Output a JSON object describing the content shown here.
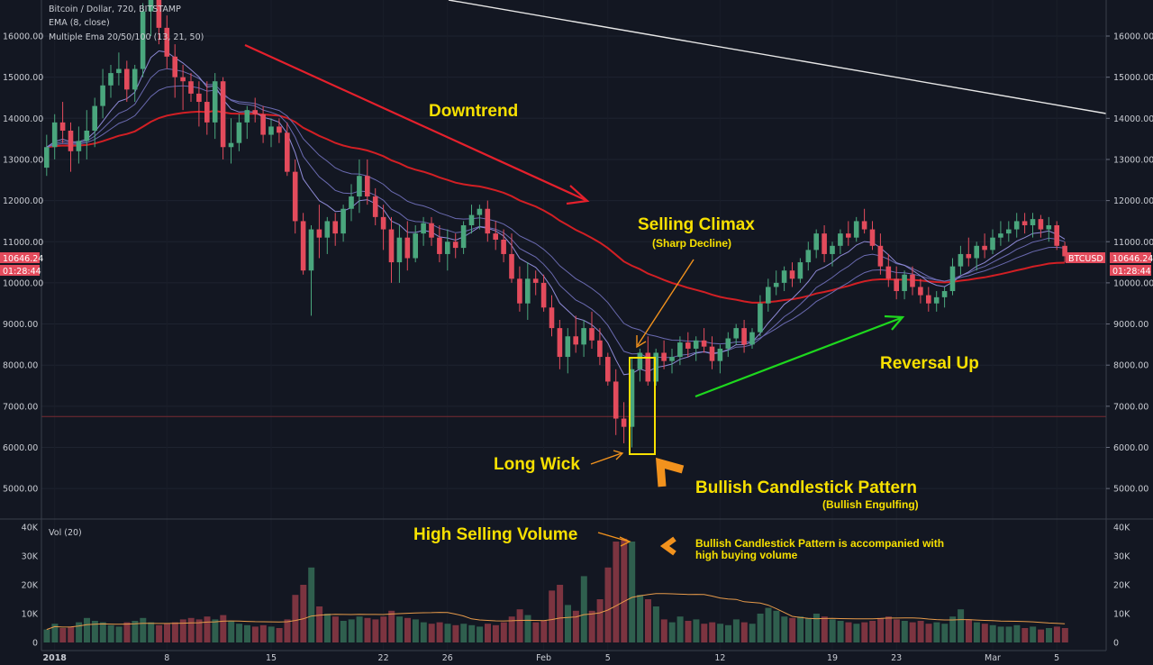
{
  "header": {
    "title": "Bitcoin / Dollar, 720, BITSTAMP",
    "ema": "EMA (8, close)",
    "multi_ema": "Multiple Ema 20/50/100 (13, 21, 50)",
    "vol_label": "Vol (20)"
  },
  "price_tag": {
    "price": "10646.24",
    "countdown": "01:28:44",
    "symbol": "BTCUSD"
  },
  "colors": {
    "background": "#131722",
    "bull": "#4aa67d",
    "bear": "#e34b5c",
    "ema_red": "#d21f24",
    "ema_fast": "#8e8ad6",
    "ema_mid": "#6a6ab0",
    "annotation": "#f7e000",
    "arrow_orange": "#f2921d",
    "arrow_red": "#e5202c",
    "arrow_green": "#1ed81e",
    "trendline": "#e6e6e6"
  },
  "annotations": {
    "downtrend": "Downtrend",
    "selling_climax": "Selling Climax",
    "sharp_decline": "(Sharp Decline)",
    "long_wick": "Long Wick",
    "reversal_up": "Reversal Up",
    "bullish_pattern": "Bullish Candlestick Pattern",
    "bullish_engulfing": "(Bullish Engulfing)",
    "high_selling_volume": "High Selling Volume",
    "buying_volume_line1": "Bullish Candlestick Pattern is accompanied with",
    "buying_volume_line2": "high buying volume"
  },
  "chart_data": {
    "type": "candlestick",
    "symbol": "BTCUSD",
    "interval": "720",
    "price_ticks": [
      "16000.00",
      "15000.00",
      "14000.00",
      "13000.00",
      "12000.00",
      "11000.00",
      "10000.00",
      "9000.00",
      "8000.00",
      "7000.00",
      "6000.00",
      "5000.00"
    ],
    "price_range": [
      4500,
      16700
    ],
    "volume_ticks": [
      "40K",
      "30K",
      "20K",
      "10K",
      "0"
    ],
    "volume_range": [
      0,
      40000
    ],
    "date_labels": [
      {
        "label": "2018",
        "bar": 1
      },
      {
        "label": "8",
        "bar": 15
      },
      {
        "label": "15",
        "bar": 28
      },
      {
        "label": "22",
        "bar": 42
      },
      {
        "label": "26",
        "bar": 50
      },
      {
        "label": "Feb",
        "bar": 62
      },
      {
        "label": "5",
        "bar": 70
      },
      {
        "label": "12",
        "bar": 84
      },
      {
        "label": "19",
        "bar": 98
      },
      {
        "label": "23",
        "bar": 106
      },
      {
        "label": "Mar",
        "bar": 118
      },
      {
        "label": "5",
        "bar": 126
      }
    ],
    "current_price": 10646.24,
    "horizontal_level": 6750,
    "candles": [
      {
        "o": 12800,
        "h": 13600,
        "l": 12600,
        "c": 13300,
        "v": 4500
      },
      {
        "o": 13300,
        "h": 14100,
        "l": 13000,
        "c": 13900,
        "v": 6500
      },
      {
        "o": 13900,
        "h": 14400,
        "l": 13400,
        "c": 13700,
        "v": 5000
      },
      {
        "o": 13700,
        "h": 13900,
        "l": 12700,
        "c": 13200,
        "v": 5500
      },
      {
        "o": 13200,
        "h": 13800,
        "l": 12900,
        "c": 13450,
        "v": 7000
      },
      {
        "o": 13450,
        "h": 14200,
        "l": 13000,
        "c": 13700,
        "v": 8500
      },
      {
        "o": 13700,
        "h": 14500,
        "l": 13300,
        "c": 14300,
        "v": 7500
      },
      {
        "o": 14300,
        "h": 15200,
        "l": 14000,
        "c": 14800,
        "v": 7000
      },
      {
        "o": 14800,
        "h": 15300,
        "l": 14500,
        "c": 15100,
        "v": 6000
      },
      {
        "o": 15100,
        "h": 15600,
        "l": 14800,
        "c": 15200,
        "v": 5500
      },
      {
        "o": 15200,
        "h": 15400,
        "l": 14400,
        "c": 14700,
        "v": 7000
      },
      {
        "o": 14700,
        "h": 15300,
        "l": 14400,
        "c": 15200,
        "v": 7500
      },
      {
        "o": 15200,
        "h": 16800,
        "l": 15000,
        "c": 16600,
        "v": 8500
      },
      {
        "o": 16600,
        "h": 17200,
        "l": 16000,
        "c": 16900,
        "v": 7000
      },
      {
        "o": 16900,
        "h": 17300,
        "l": 15800,
        "c": 16200,
        "v": 6000
      },
      {
        "o": 16200,
        "h": 16500,
        "l": 15200,
        "c": 15500,
        "v": 6500
      },
      {
        "o": 15500,
        "h": 15800,
        "l": 14500,
        "c": 15000,
        "v": 7000
      },
      {
        "o": 15000,
        "h": 15300,
        "l": 14200,
        "c": 14900,
        "v": 8000
      },
      {
        "o": 14900,
        "h": 15100,
        "l": 14400,
        "c": 14600,
        "v": 8500
      },
      {
        "o": 14600,
        "h": 14900,
        "l": 13800,
        "c": 14400,
        "v": 8000
      },
      {
        "o": 14400,
        "h": 14900,
        "l": 13600,
        "c": 13900,
        "v": 9000
      },
      {
        "o": 13900,
        "h": 15100,
        "l": 13500,
        "c": 14900,
        "v": 8000
      },
      {
        "o": 14900,
        "h": 15000,
        "l": 13000,
        "c": 13300,
        "v": 9500
      },
      {
        "o": 13300,
        "h": 14000,
        "l": 12900,
        "c": 13400,
        "v": 7500
      },
      {
        "o": 13400,
        "h": 14100,
        "l": 13200,
        "c": 13900,
        "v": 6500
      },
      {
        "o": 13900,
        "h": 14300,
        "l": 13500,
        "c": 14200,
        "v": 6000
      },
      {
        "o": 14200,
        "h": 14500,
        "l": 13900,
        "c": 14100,
        "v": 5500
      },
      {
        "o": 14100,
        "h": 14300,
        "l": 13400,
        "c": 13600,
        "v": 6000
      },
      {
        "o": 13600,
        "h": 14000,
        "l": 13300,
        "c": 13800,
        "v": 5500
      },
      {
        "o": 13800,
        "h": 14000,
        "l": 13400,
        "c": 13650,
        "v": 5000
      },
      {
        "o": 13650,
        "h": 13900,
        "l": 12600,
        "c": 12700,
        "v": 8000
      },
      {
        "o": 12700,
        "h": 13000,
        "l": 11200,
        "c": 11500,
        "v": 16500
      },
      {
        "o": 11500,
        "h": 11700,
        "l": 10200,
        "c": 10300,
        "v": 20000
      },
      {
        "o": 10300,
        "h": 11400,
        "l": 9200,
        "c": 11300,
        "v": 26000
      },
      {
        "o": 11300,
        "h": 11900,
        "l": 10600,
        "c": 11100,
        "v": 12500
      },
      {
        "o": 11100,
        "h": 11600,
        "l": 10700,
        "c": 11500,
        "v": 10000
      },
      {
        "o": 11500,
        "h": 11700,
        "l": 10900,
        "c": 11200,
        "v": 9000
      },
      {
        "o": 11200,
        "h": 11900,
        "l": 11000,
        "c": 11800,
        "v": 7500
      },
      {
        "o": 11800,
        "h": 12400,
        "l": 11500,
        "c": 12100,
        "v": 8000
      },
      {
        "o": 12100,
        "h": 13000,
        "l": 11700,
        "c": 12600,
        "v": 9000
      },
      {
        "o": 12600,
        "h": 13000,
        "l": 11900,
        "c": 12100,
        "v": 8500
      },
      {
        "o": 12100,
        "h": 12300,
        "l": 11400,
        "c": 11600,
        "v": 8000
      },
      {
        "o": 11600,
        "h": 11900,
        "l": 10800,
        "c": 11300,
        "v": 9000
      },
      {
        "o": 11300,
        "h": 11600,
        "l": 10000,
        "c": 10500,
        "v": 11000
      },
      {
        "o": 10500,
        "h": 11400,
        "l": 10000,
        "c": 11100,
        "v": 9000
      },
      {
        "o": 11100,
        "h": 11500,
        "l": 10300,
        "c": 10600,
        "v": 8500
      },
      {
        "o": 10600,
        "h": 11400,
        "l": 10500,
        "c": 11200,
        "v": 8000
      },
      {
        "o": 11200,
        "h": 11600,
        "l": 10900,
        "c": 11450,
        "v": 7000
      },
      {
        "o": 11450,
        "h": 11600,
        "l": 10900,
        "c": 11100,
        "v": 6500
      },
      {
        "o": 11100,
        "h": 11400,
        "l": 10500,
        "c": 10700,
        "v": 7000
      },
      {
        "o": 10700,
        "h": 11300,
        "l": 10300,
        "c": 11000,
        "v": 6500
      },
      {
        "o": 11000,
        "h": 11200,
        "l": 10600,
        "c": 10850,
        "v": 6000
      },
      {
        "o": 10850,
        "h": 11500,
        "l": 10700,
        "c": 11400,
        "v": 6500
      },
      {
        "o": 11400,
        "h": 11900,
        "l": 11200,
        "c": 11650,
        "v": 6000
      },
      {
        "o": 11650,
        "h": 11900,
        "l": 11300,
        "c": 11800,
        "v": 5500
      },
      {
        "o": 11800,
        "h": 12000,
        "l": 11000,
        "c": 11200,
        "v": 6500
      },
      {
        "o": 11200,
        "h": 11500,
        "l": 10800,
        "c": 11050,
        "v": 6000
      },
      {
        "o": 11050,
        "h": 11300,
        "l": 10500,
        "c": 10700,
        "v": 7000
      },
      {
        "o": 10700,
        "h": 11200,
        "l": 10000,
        "c": 10100,
        "v": 9000
      },
      {
        "o": 10100,
        "h": 10400,
        "l": 9300,
        "c": 9500,
        "v": 11500
      },
      {
        "o": 9500,
        "h": 10500,
        "l": 9100,
        "c": 10100,
        "v": 9500
      },
      {
        "o": 10100,
        "h": 10300,
        "l": 9700,
        "c": 10000,
        "v": 7000
      },
      {
        "o": 10000,
        "h": 10200,
        "l": 9300,
        "c": 9400,
        "v": 7500
      },
      {
        "o": 9400,
        "h": 9700,
        "l": 8700,
        "c": 8900,
        "v": 18000
      },
      {
        "o": 8900,
        "h": 9100,
        "l": 7900,
        "c": 8200,
        "v": 20000
      },
      {
        "o": 8200,
        "h": 8900,
        "l": 7800,
        "c": 8700,
        "v": 13000
      },
      {
        "o": 8700,
        "h": 9200,
        "l": 8300,
        "c": 8500,
        "v": 11000
      },
      {
        "o": 8500,
        "h": 9100,
        "l": 8200,
        "c": 8900,
        "v": 23000
      },
      {
        "o": 8900,
        "h": 9300,
        "l": 8400,
        "c": 8600,
        "v": 11000
      },
      {
        "o": 8600,
        "h": 8900,
        "l": 8000,
        "c": 8200,
        "v": 15000
      },
      {
        "o": 8200,
        "h": 8300,
        "l": 7500,
        "c": 7600,
        "v": 26000
      },
      {
        "o": 7600,
        "h": 7900,
        "l": 6300,
        "c": 6700,
        "v": 35000
      },
      {
        "o": 6700,
        "h": 7100,
        "l": 6100,
        "c": 6500,
        "v": 36000
      },
      {
        "o": 6500,
        "h": 8200,
        "l": 6000,
        "c": 7900,
        "v": 35000
      },
      {
        "o": 7900,
        "h": 8400,
        "l": 7600,
        "c": 8300,
        "v": 16500
      },
      {
        "o": 8300,
        "h": 8700,
        "l": 7500,
        "c": 7600,
        "v": 15000
      },
      {
        "o": 7600,
        "h": 8400,
        "l": 7500,
        "c": 8300,
        "v": 12500
      },
      {
        "o": 8300,
        "h": 8600,
        "l": 7900,
        "c": 8100,
        "v": 8000
      },
      {
        "o": 8100,
        "h": 8400,
        "l": 7800,
        "c": 8200,
        "v": 7000
      },
      {
        "o": 8200,
        "h": 8700,
        "l": 8000,
        "c": 8550,
        "v": 9000
      },
      {
        "o": 8550,
        "h": 8800,
        "l": 8200,
        "c": 8400,
        "v": 7500
      },
      {
        "o": 8400,
        "h": 8700,
        "l": 8100,
        "c": 8600,
        "v": 8000
      },
      {
        "o": 8600,
        "h": 8900,
        "l": 8300,
        "c": 8450,
        "v": 6500
      },
      {
        "o": 8450,
        "h": 8700,
        "l": 7900,
        "c": 8100,
        "v": 7000
      },
      {
        "o": 8100,
        "h": 8500,
        "l": 7800,
        "c": 8400,
        "v": 6500
      },
      {
        "o": 8400,
        "h": 8800,
        "l": 8200,
        "c": 8650,
        "v": 6000
      },
      {
        "o": 8650,
        "h": 9000,
        "l": 8500,
        "c": 8900,
        "v": 8000
      },
      {
        "o": 8900,
        "h": 9100,
        "l": 8300,
        "c": 8500,
        "v": 7000
      },
      {
        "o": 8500,
        "h": 8900,
        "l": 8400,
        "c": 8800,
        "v": 6500
      },
      {
        "o": 8800,
        "h": 9700,
        "l": 8700,
        "c": 9500,
        "v": 10000
      },
      {
        "o": 9500,
        "h": 10100,
        "l": 9300,
        "c": 9900,
        "v": 12000
      },
      {
        "o": 9900,
        "h": 10300,
        "l": 9700,
        "c": 10000,
        "v": 11000
      },
      {
        "o": 10000,
        "h": 10400,
        "l": 9800,
        "c": 10300,
        "v": 9000
      },
      {
        "o": 10300,
        "h": 10500,
        "l": 9900,
        "c": 10100,
        "v": 8500
      },
      {
        "o": 10100,
        "h": 10600,
        "l": 10000,
        "c": 10500,
        "v": 9000
      },
      {
        "o": 10500,
        "h": 11000,
        "l": 10300,
        "c": 10800,
        "v": 8500
      },
      {
        "o": 10800,
        "h": 11300,
        "l": 10600,
        "c": 11200,
        "v": 10000
      },
      {
        "o": 11200,
        "h": 11400,
        "l": 10500,
        "c": 10700,
        "v": 9000
      },
      {
        "o": 10700,
        "h": 11000,
        "l": 10400,
        "c": 10900,
        "v": 8000
      },
      {
        "o": 10900,
        "h": 11300,
        "l": 10700,
        "c": 11200,
        "v": 7500
      },
      {
        "o": 11200,
        "h": 11500,
        "l": 10900,
        "c": 11100,
        "v": 7000
      },
      {
        "o": 11100,
        "h": 11600,
        "l": 11000,
        "c": 11500,
        "v": 6500
      },
      {
        "o": 11500,
        "h": 11800,
        "l": 11200,
        "c": 11300,
        "v": 7000
      },
      {
        "o": 11300,
        "h": 11500,
        "l": 10800,
        "c": 10900,
        "v": 7500
      },
      {
        "o": 10900,
        "h": 11200,
        "l": 10200,
        "c": 10400,
        "v": 8500
      },
      {
        "o": 10400,
        "h": 10700,
        "l": 9900,
        "c": 10100,
        "v": 9000
      },
      {
        "o": 10100,
        "h": 10400,
        "l": 9600,
        "c": 9800,
        "v": 8000
      },
      {
        "o": 9800,
        "h": 10300,
        "l": 9600,
        "c": 10200,
        "v": 7500
      },
      {
        "o": 10200,
        "h": 10400,
        "l": 9700,
        "c": 9900,
        "v": 7000
      },
      {
        "o": 9900,
        "h": 10100,
        "l": 9500,
        "c": 9700,
        "v": 7500
      },
      {
        "o": 9700,
        "h": 9900,
        "l": 9300,
        "c": 9500,
        "v": 6500
      },
      {
        "o": 9500,
        "h": 9800,
        "l": 9300,
        "c": 9650,
        "v": 7000
      },
      {
        "o": 9650,
        "h": 9900,
        "l": 9400,
        "c": 9800,
        "v": 6500
      },
      {
        "o": 9800,
        "h": 10600,
        "l": 9700,
        "c": 10400,
        "v": 9000
      },
      {
        "o": 10400,
        "h": 10900,
        "l": 10200,
        "c": 10700,
        "v": 11500
      },
      {
        "o": 10700,
        "h": 11100,
        "l": 10400,
        "c": 10600,
        "v": 8000
      },
      {
        "o": 10600,
        "h": 11000,
        "l": 10300,
        "c": 10900,
        "v": 7000
      },
      {
        "o": 10900,
        "h": 11200,
        "l": 10600,
        "c": 10800,
        "v": 6500
      },
      {
        "o": 10800,
        "h": 11300,
        "l": 10700,
        "c": 11100,
        "v": 6000
      },
      {
        "o": 11100,
        "h": 11500,
        "l": 10900,
        "c": 11200,
        "v": 5500
      },
      {
        "o": 11200,
        "h": 11500,
        "l": 11000,
        "c": 11300,
        "v": 5500
      },
      {
        "o": 11300,
        "h": 11700,
        "l": 11100,
        "c": 11500,
        "v": 6000
      },
      {
        "o": 11500,
        "h": 11700,
        "l": 11200,
        "c": 11400,
        "v": 5000
      },
      {
        "o": 11400,
        "h": 11700,
        "l": 11100,
        "c": 11550,
        "v": 5500
      },
      {
        "o": 11550,
        "h": 11650,
        "l": 11100,
        "c": 11300,
        "v": 4500
      },
      {
        "o": 11300,
        "h": 11600,
        "l": 11000,
        "c": 11400,
        "v": 5000
      },
      {
        "o": 11400,
        "h": 11500,
        "l": 10800,
        "c": 10900,
        "v": 5500
      },
      {
        "o": 10900,
        "h": 11000,
        "l": 10500,
        "c": 10646.24,
        "v": 5000
      }
    ],
    "ema_lines": [
      {
        "name": "EMA (8, close)",
        "color": "#8e8ad6"
      },
      {
        "name": "Multiple Ema 20/50/100 (13, 21, 50)",
        "color": "#d21f24"
      }
    ],
    "volume_ma_color": "#e69a4a"
  }
}
